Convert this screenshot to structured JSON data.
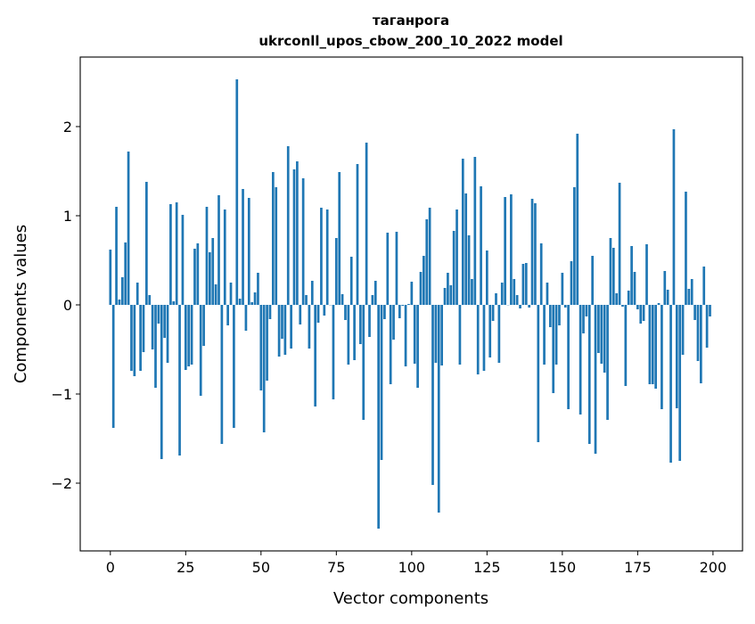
{
  "chart_data": {
    "type": "bar",
    "title_line1": "таганрога",
    "title_line2": "ukrconll_upos_cbow_200_10_2022 model",
    "xlabel": "Vector components",
    "ylabel": "Components values",
    "xlim": [
      -10,
      209.8
    ],
    "ylim": [
      -2.76,
      2.78
    ],
    "xticks": [
      0,
      25,
      50,
      75,
      100,
      125,
      150,
      175,
      200
    ],
    "xtick_labels": [
      "0",
      "25",
      "50",
      "75",
      "100",
      "125",
      "150",
      "175",
      "200"
    ],
    "yticks": [
      -2,
      -1,
      0,
      1,
      2
    ],
    "ytick_labels": [
      "−2",
      "−1",
      "0",
      "1",
      "2"
    ],
    "grid": false,
    "bar_color": "#1f77b4",
    "values": [
      0.62,
      -1.38,
      1.1,
      0.06,
      0.31,
      0.7,
      1.72,
      -0.74,
      -0.8,
      0.25,
      -0.74,
      -0.53,
      1.38,
      0.11,
      -0.5,
      -0.93,
      -0.21,
      -1.73,
      -0.37,
      -0.65,
      1.13,
      0.04,
      1.15,
      -1.69,
      1.01,
      -0.73,
      -0.69,
      -0.67,
      0.63,
      0.69,
      -1.02,
      -0.46,
      1.1,
      0.59,
      0.75,
      0.23,
      1.23,
      -1.56,
      1.07,
      -0.23,
      0.25,
      -1.38,
      2.53,
      0.07,
      1.3,
      -0.29,
      1.2,
      0.03,
      0.14,
      0.36,
      -0.96,
      -1.43,
      -0.85,
      -0.16,
      1.49,
      1.32,
      -0.58,
      -0.38,
      -0.56,
      1.78,
      -0.49,
      1.52,
      1.61,
      -0.22,
      1.42,
      0.11,
      -0.49,
      0.27,
      -1.14,
      -0.2,
      1.09,
      -0.12,
      1.07,
      0.0,
      -1.06,
      0.75,
      1.49,
      0.12,
      -0.17,
      -0.67,
      0.54,
      -0.62,
      1.58,
      -0.44,
      -1.29,
      1.82,
      -0.36,
      0.11,
      0.27,
      -2.51,
      -1.74,
      -0.16,
      0.81,
      -0.89,
      -0.39,
      0.82,
      -0.15,
      -0.01,
      -0.69,
      0.01,
      0.26,
      -0.66,
      -0.93,
      0.37,
      0.55,
      0.96,
      1.09,
      -2.02,
      -0.65,
      -2.33,
      -0.68,
      0.19,
      0.36,
      0.22,
      0.83,
      1.07,
      -0.67,
      1.64,
      1.25,
      0.78,
      0.29,
      1.66,
      -0.78,
      1.33,
      -0.74,
      0.61,
      -0.59,
      -0.18,
      0.13,
      -0.65,
      0.25,
      1.21,
      0.0,
      1.24,
      0.29,
      0.11,
      -0.04,
      0.46,
      0.47,
      -0.03,
      1.19,
      1.14,
      -1.54,
      0.69,
      -0.67,
      0.25,
      -0.25,
      -0.99,
      -0.67,
      -0.23,
      0.36,
      -0.03,
      -1.17,
      0.49,
      1.32,
      1.92,
      -1.23,
      -0.32,
      -0.13,
      -1.56,
      0.55,
      -1.67,
      -0.54,
      -0.66,
      -0.76,
      -1.29,
      0.75,
      0.64,
      0.13,
      1.37,
      -0.02,
      -0.91,
      0.16,
      0.66,
      0.37,
      -0.05,
      -0.21,
      -0.18,
      0.68,
      -0.89,
      -0.89,
      -0.94,
      0.02,
      -1.17,
      0.38,
      0.17,
      -1.77,
      1.97,
      -1.16,
      -1.75,
      -0.56,
      1.27,
      0.18,
      0.29,
      -0.17,
      -0.63,
      -0.88,
      0.43,
      -0.48,
      -0.13
    ]
  }
}
